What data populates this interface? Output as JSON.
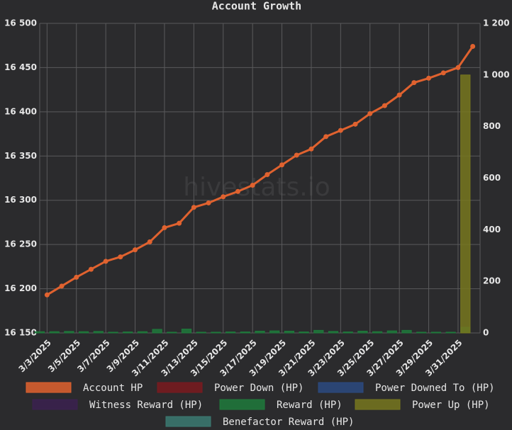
{
  "chart_data": {
    "type": "line",
    "title": "Account Growth",
    "watermark": "hivestats.io",
    "categories": [
      "3/3/2025",
      null,
      "3/5/2025",
      null,
      "3/7/2025",
      null,
      "3/9/2025",
      null,
      "3/11/2025",
      null,
      "3/13/2025",
      null,
      "3/15/2025",
      null,
      "3/17/2025",
      null,
      "3/19/2025",
      null,
      "3/21/2025",
      null,
      "3/23/2025",
      null,
      "3/25/2025",
      null,
      "3/27/2025",
      null,
      "3/29/2025",
      null,
      "3/31/2025",
      null
    ],
    "ylim": [
      16150,
      16500
    ],
    "yticks": [
      {
        "value": 16150,
        "label": "16 150"
      },
      {
        "value": 16200,
        "label": "16 200"
      },
      {
        "value": 16250,
        "label": "16 250"
      },
      {
        "value": 16300,
        "label": "16 300"
      },
      {
        "value": 16350,
        "label": "16 350"
      },
      {
        "value": 16400,
        "label": "16 400"
      },
      {
        "value": 16450,
        "label": "16 450"
      },
      {
        "value": 16500,
        "label": "16 500"
      }
    ],
    "y2lim": [
      0,
      1200
    ],
    "y2ticks": [
      0,
      200,
      400,
      600,
      800,
      {
        "value": 1000,
        "label": "1 000"
      },
      {
        "value": 1200,
        "label": "1 200"
      }
    ],
    "grid": true,
    "legend": "bottom",
    "series": [
      {
        "name": "Account HP",
        "type": "line",
        "color": "#e0622f",
        "values": [
          16193,
          16203,
          16213,
          16222,
          16231,
          16236,
          16244,
          16253,
          16269,
          16274,
          16292,
          16297,
          16304,
          16310,
          16317,
          16329,
          16340,
          16351,
          16358,
          16372,
          16379,
          16386,
          16398,
          16407,
          16419,
          16433,
          16438,
          16444,
          16450,
          16474
        ]
      },
      {
        "name": "Power Down (HP)",
        "type": "bar",
        "axis": "y2",
        "color": "#7a1a1f",
        "values": [
          null,
          null,
          null,
          null,
          null,
          null,
          null,
          null,
          null,
          null,
          null,
          null,
          null,
          null,
          null,
          null,
          null,
          null,
          null,
          null,
          null,
          null,
          null,
          null,
          null,
          null,
          null,
          null,
          null,
          null
        ]
      },
      {
        "name": "Power Downed To (HP)",
        "type": "bar",
        "axis": "y2",
        "color": "#2b4a80",
        "values": [
          null,
          null,
          null,
          null,
          null,
          null,
          null,
          null,
          null,
          null,
          null,
          null,
          null,
          null,
          null,
          null,
          null,
          null,
          null,
          null,
          null,
          null,
          null,
          null,
          null,
          null,
          null,
          null,
          null,
          null
        ]
      },
      {
        "name": "Witness Reward (HP)",
        "type": "bar",
        "axis": "y2",
        "color": "#3b2150",
        "values": [
          null,
          null,
          null,
          null,
          null,
          null,
          null,
          null,
          null,
          null,
          null,
          null,
          null,
          null,
          null,
          null,
          null,
          null,
          null,
          null,
          null,
          null,
          null,
          null,
          null,
          null,
          null,
          null,
          null,
          null
        ]
      },
      {
        "name": "Reward (HP)",
        "type": "bar",
        "axis": "y2",
        "color": "#1f7a3c",
        "values": [
          5,
          5,
          6,
          5,
          6,
          3,
          4,
          5,
          14,
          3,
          15,
          3,
          3,
          4,
          4,
          7,
          8,
          7,
          4,
          10,
          6,
          4,
          7,
          5,
          8,
          10,
          3,
          3,
          3,
          22
        ]
      },
      {
        "name": "Power Up (HP)",
        "type": "bar",
        "axis": "y2",
        "color": "#77771f",
        "values": [
          null,
          null,
          null,
          null,
          null,
          null,
          null,
          null,
          null,
          null,
          null,
          null,
          null,
          null,
          null,
          null,
          null,
          null,
          null,
          null,
          null,
          null,
          null,
          null,
          null,
          null,
          null,
          null,
          null,
          1000
        ]
      },
      {
        "name": "Benefactor Reward (HP)",
        "type": "bar",
        "axis": "y2",
        "color": "#3b7a72",
        "values": [
          null,
          null,
          null,
          null,
          null,
          null,
          null,
          null,
          null,
          null,
          null,
          null,
          null,
          null,
          null,
          null,
          null,
          null,
          null,
          null,
          null,
          null,
          null,
          null,
          null,
          null,
          null,
          null,
          null,
          null
        ]
      }
    ]
  }
}
